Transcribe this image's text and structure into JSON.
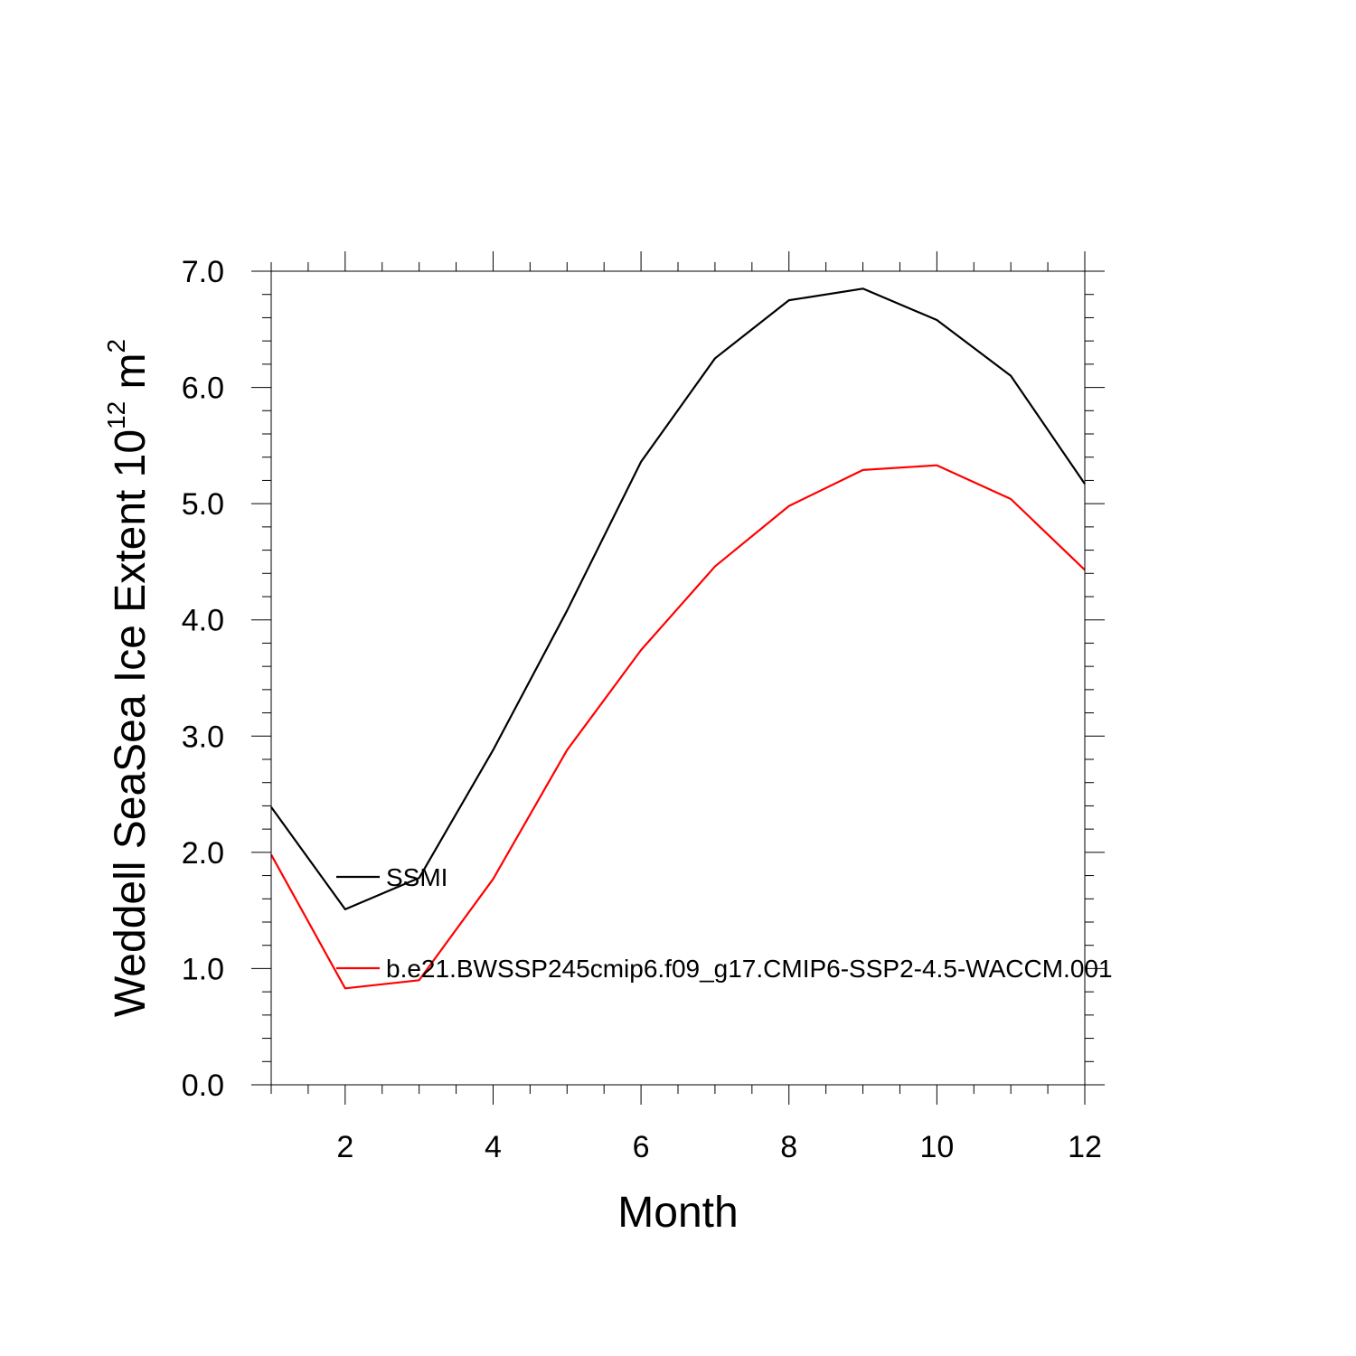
{
  "chart_data": {
    "type": "line",
    "title": "",
    "xlabel": "Month",
    "ylabel": {
      "prefix": "Weddell SeaSea Ice Extent 10",
      "exponent": "12",
      "unit": " m",
      "unit_exponent": "2"
    },
    "xlim": [
      1,
      12
    ],
    "ylim": [
      0,
      7
    ],
    "x": [
      1,
      2,
      3,
      4,
      5,
      6,
      7,
      8,
      9,
      10,
      11,
      12
    ],
    "x_ticks": [
      2,
      4,
      6,
      8,
      10,
      12
    ],
    "x_tick_labels": [
      "2",
      "4",
      "6",
      "8",
      "10",
      "12"
    ],
    "y_ticks": [
      0,
      1,
      2,
      3,
      4,
      5,
      6,
      7
    ],
    "y_tick_labels": [
      "0.0",
      "1.0",
      "2.0",
      "3.0",
      "4.0",
      "5.0",
      "6.0",
      "7.0"
    ],
    "grid": false,
    "legend_position": "left-inside",
    "series": [
      {
        "name": "SSMI",
        "color": "#000000",
        "values": [
          2.39,
          1.51,
          1.78,
          2.88,
          4.08,
          5.36,
          6.25,
          6.75,
          6.85,
          6.58,
          6.1,
          5.17
        ]
      },
      {
        "name": "b.e21.BWSSP245cmip6.f09_g17.CMIP6-SSP2-4.5-WACCM.001",
        "color": "#ff0000",
        "values": [
          1.98,
          0.83,
          0.9,
          1.77,
          2.88,
          3.74,
          4.46,
          4.98,
          5.29,
          5.33,
          5.04,
          4.43
        ]
      }
    ]
  }
}
